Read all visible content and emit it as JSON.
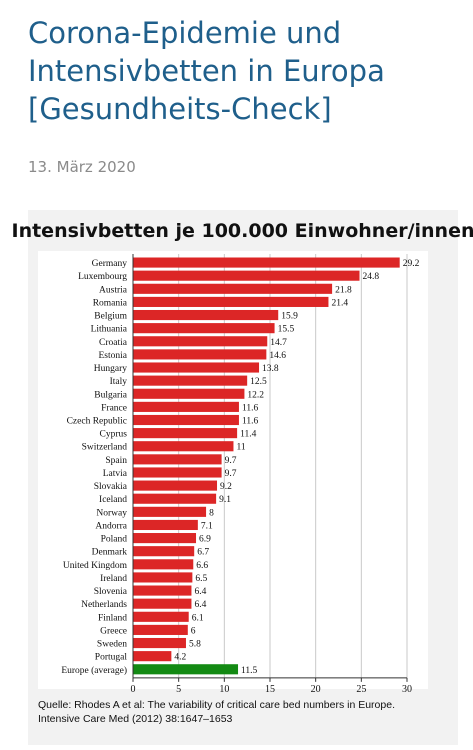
{
  "article": {
    "title_line1": "Corona-Epidemie und",
    "title_line2": "Intensivbetten in Europa",
    "title_line3": "[Gesundheits-Check]",
    "date": "13. März 2020"
  },
  "source_line1": "Quelle: Rhodes A et al: The variability of critical care bed numbers in Europe.",
  "source_line2": "Intensive Care Med (2012) 38:1647–1653",
  "colors": {
    "bar": "#dc2626",
    "highlight": "#138a13",
    "grid": "#c9c9c9"
  },
  "chart_data": {
    "type": "bar",
    "orientation": "horizontal",
    "title": "Intensivbetten je 100.000 Einwohner/innen",
    "categories": [
      "Germany",
      "Luxembourg",
      "Austria",
      "Romania",
      "Belgium",
      "Lithuania",
      "Croatia",
      "Estonia",
      "Hungary",
      "Italy",
      "Bulgaria",
      "France",
      "Czech Republic",
      "Cyprus",
      "Switzerland",
      "Spain",
      "Latvia",
      "Slovakia",
      "Iceland",
      "Norway",
      "Andorra",
      "Poland",
      "Denmark",
      "United Kingdom",
      "Ireland",
      "Slovenia",
      "Netherlands",
      "Finland",
      "Greece",
      "Sweden",
      "Portugal",
      "Europe (average)"
    ],
    "values": [
      29.2,
      24.8,
      21.8,
      21.4,
      15.9,
      15.5,
      14.7,
      14.6,
      13.8,
      12.5,
      12.2,
      11.6,
      11.6,
      11.4,
      11,
      9.7,
      9.7,
      9.2,
      9.1,
      8,
      7.1,
      6.9,
      6.7,
      6.6,
      6.5,
      6.4,
      6.4,
      6.1,
      6,
      5.8,
      4.2,
      11.5
    ],
    "value_labels": [
      "29.2",
      "24.8",
      "21.8",
      "21.4",
      "15.9",
      "15.5",
      "14.7",
      "14.6",
      "13.8",
      "12.5",
      "12.2",
      "11.6",
      "11.6",
      "11.4",
      "11",
      "9.7",
      "9.7",
      "9.2",
      "9.1",
      "8",
      "7.1",
      "6.9",
      "6.7",
      "6.6",
      "6.5",
      "6.4",
      "6.4",
      "6.1",
      "6",
      "5.8",
      "4.2",
      "11.5"
    ],
    "highlighted_category": "Europe (average)",
    "xlim": [
      0,
      30
    ],
    "xticks": [
      "0",
      "5",
      "10",
      "15",
      "20",
      "25",
      "30"
    ],
    "grid": true
  }
}
